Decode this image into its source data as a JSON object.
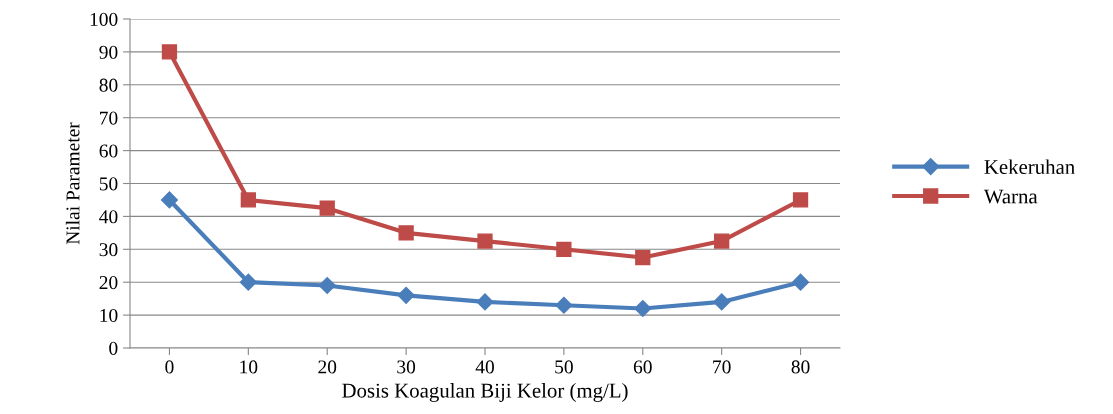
{
  "chart_data": {
    "type": "line",
    "xlabel": "Dosis Koagulan Biji Kelor (mg/L)",
    "ylabel": "Nilai Parameter",
    "categories": [
      "0",
      "10",
      "20",
      "30",
      "40",
      "50",
      "60",
      "70",
      "80"
    ],
    "series": [
      {
        "name": "Kekeruhan",
        "color": "#4a7ebb",
        "marker": "diamond",
        "values": [
          45,
          20,
          19,
          16,
          14,
          13,
          12,
          14,
          20
        ]
      },
      {
        "name": "Warna",
        "color": "#be4b48",
        "marker": "square",
        "values": [
          90,
          45,
          42.5,
          35,
          32.5,
          30,
          27.5,
          32.5,
          45
        ]
      }
    ],
    "ylim": [
      0,
      100
    ],
    "yticks": [
      0,
      10,
      20,
      30,
      40,
      50,
      60,
      70,
      80,
      90,
      100
    ],
    "grid": "y",
    "legend": "right",
    "line_style": "solid"
  }
}
